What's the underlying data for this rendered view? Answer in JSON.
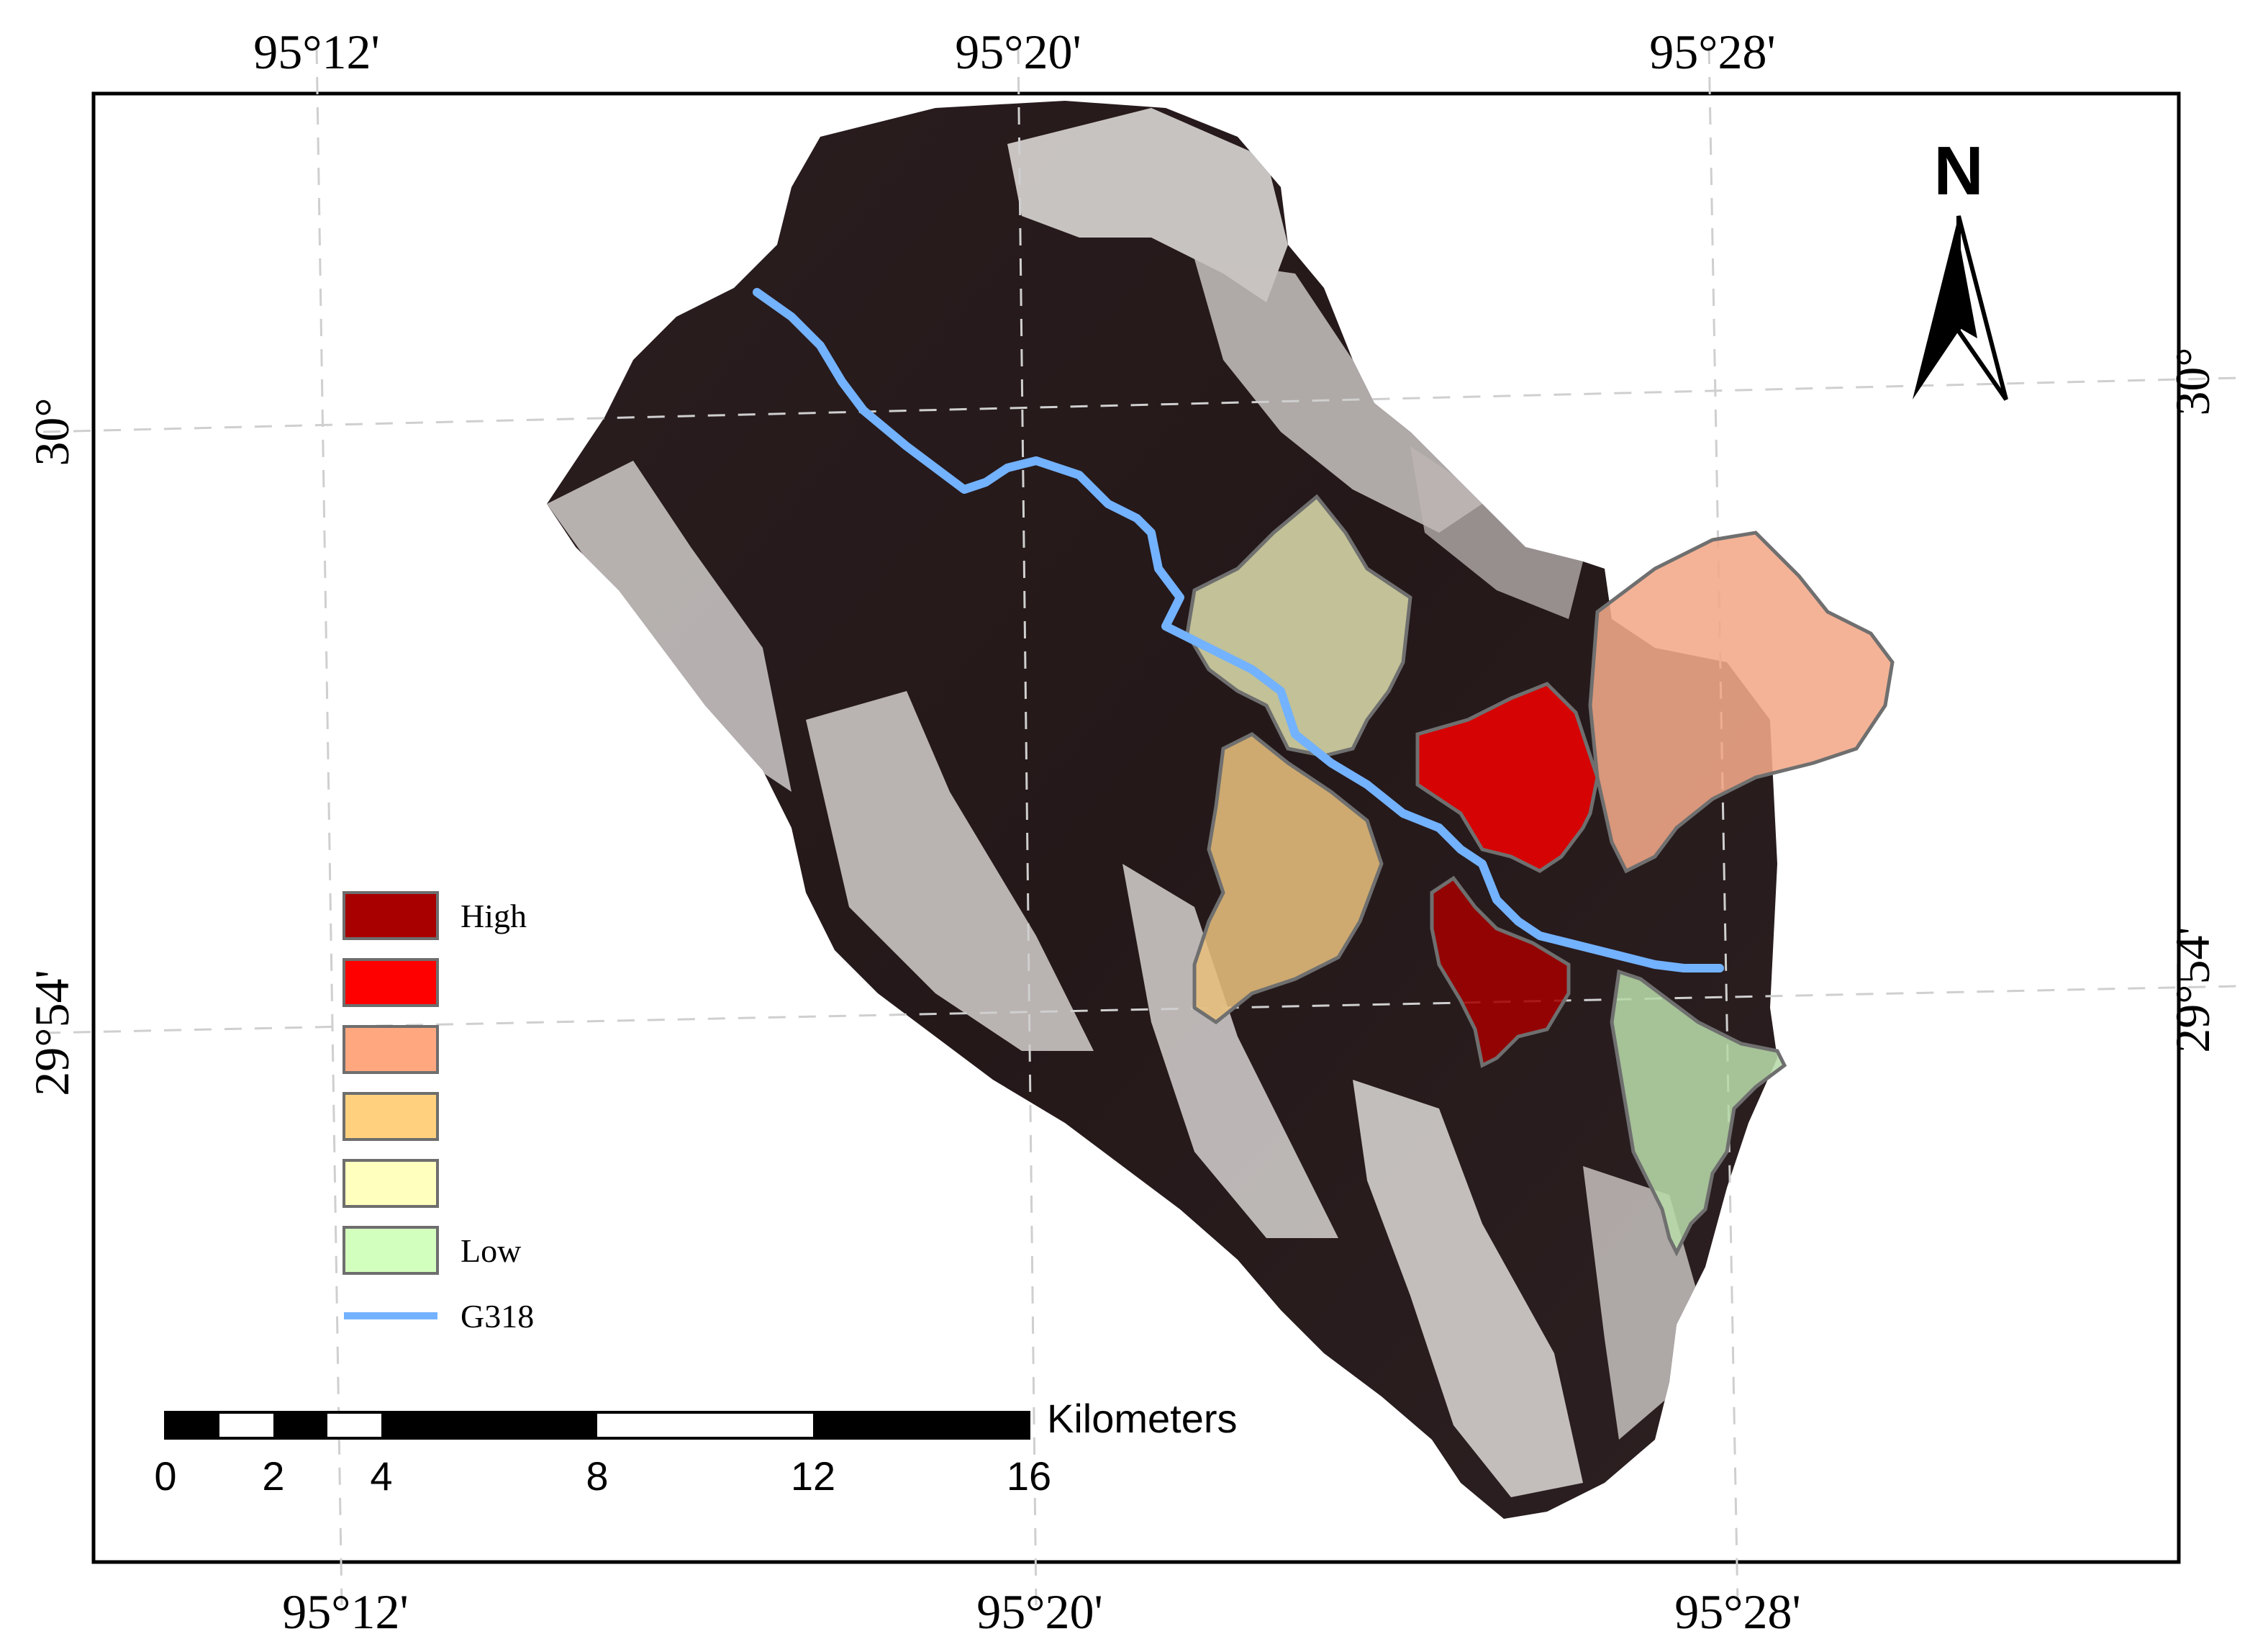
{
  "map": {
    "top_ticks": [
      "95°12'",
      "95°20'",
      "95°28'"
    ],
    "bottom_ticks": [
      "95°12'",
      "95°20'",
      "95°28'"
    ],
    "left_ticks": [
      "30°",
      "29°54'"
    ],
    "right_ticks": [
      "30°",
      "29°54'"
    ],
    "north_label": "N"
  },
  "legend": {
    "items": [
      {
        "label": "High",
        "color": "#a80000"
      },
      {
        "label": "",
        "color": "#ff0000"
      },
      {
        "label": "",
        "color": "#ffa77f"
      },
      {
        "label": "",
        "color": "#ffd17f"
      },
      {
        "label": "",
        "color": "#ffffbe"
      },
      {
        "label": "Low",
        "color": "#d3ffbe"
      }
    ],
    "road": {
      "label": "G318",
      "color": "#73b2ff"
    }
  },
  "scale_bar": {
    "unit": "Kilometers",
    "labels": [
      "0",
      "2",
      "4",
      "8",
      "12",
      "16"
    ]
  },
  "zones": [
    {
      "name": "zone-north-center",
      "color": "#d8d8a8"
    },
    {
      "name": "zone-west-center",
      "color": "#e6be7c"
    },
    {
      "name": "zone-high-red",
      "color": "#ee0000"
    },
    {
      "name": "zone-east-salmon",
      "color": "#f2a989"
    },
    {
      "name": "zone-south-darkred",
      "color": "#a30000"
    },
    {
      "name": "zone-southeast-green",
      "color": "#b7d9a8"
    }
  ]
}
